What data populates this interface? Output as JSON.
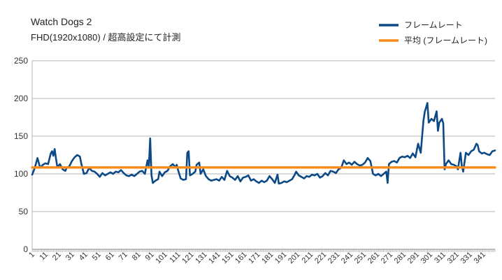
{
  "chart_data": {
    "type": "line",
    "title": "Watch Dogs 2",
    "subtitle": "FHD(1920x1080) / 超高設定にて計測",
    "xlabel": "",
    "ylabel": "",
    "ylim": [
      0,
      250
    ],
    "yticks": [
      "0",
      "50",
      "100",
      "150",
      "200",
      "250"
    ],
    "xlim": [
      1,
      350
    ],
    "xticks": [
      1,
      11,
      21,
      31,
      41,
      51,
      61,
      71,
      81,
      91,
      101,
      111,
      121,
      131,
      141,
      151,
      161,
      171,
      181,
      191,
      201,
      211,
      221,
      231,
      241,
      251,
      261,
      271,
      281,
      291,
      301,
      311,
      321,
      331,
      341
    ],
    "grid": "horizontal",
    "legend_position": "top-right",
    "series": [
      {
        "name": "フレームレート",
        "color": "#0b4a86",
        "points": [
          [
            1,
            99
          ],
          [
            3,
            108
          ],
          [
            5,
            121
          ],
          [
            7,
            108
          ],
          [
            9,
            112
          ],
          [
            11,
            114
          ],
          [
            13,
            113
          ],
          [
            15,
            127
          ],
          [
            16,
            130
          ],
          [
            17,
            124
          ],
          [
            18,
            133
          ],
          [
            19,
            120
          ],
          [
            20,
            109
          ],
          [
            22,
            113
          ],
          [
            24,
            106
          ],
          [
            26,
            104
          ],
          [
            27,
            108
          ],
          [
            29,
            110
          ],
          [
            31,
            117
          ],
          [
            33,
            122
          ],
          [
            35,
            125
          ],
          [
            37,
            123
          ],
          [
            38,
            114
          ],
          [
            40,
            100
          ],
          [
            42,
            101
          ],
          [
            44,
            108
          ],
          [
            46,
            104
          ],
          [
            48,
            103
          ],
          [
            50,
            100
          ],
          [
            52,
            96
          ],
          [
            54,
            101
          ],
          [
            56,
            98
          ],
          [
            58,
            100
          ],
          [
            60,
            102
          ],
          [
            62,
            100
          ],
          [
            64,
            103
          ],
          [
            66,
            102
          ],
          [
            68,
            105
          ],
          [
            70,
            101
          ],
          [
            72,
            98
          ],
          [
            74,
            97
          ],
          [
            76,
            99
          ],
          [
            78,
            97
          ],
          [
            80,
            100
          ],
          [
            82,
            103
          ],
          [
            84,
            104
          ],
          [
            86,
            100
          ],
          [
            88,
            118
          ],
          [
            89,
            110
          ],
          [
            90,
            147
          ],
          [
            91,
            98
          ],
          [
            92,
            88
          ],
          [
            94,
            91
          ],
          [
            96,
            93
          ],
          [
            97,
            103
          ],
          [
            99,
            97
          ],
          [
            101,
            102
          ],
          [
            103,
            104
          ],
          [
            105,
            110
          ],
          [
            107,
            113
          ],
          [
            109,
            109
          ],
          [
            110,
            112
          ],
          [
            111,
            105
          ],
          [
            113,
            94
          ],
          [
            115,
            92
          ],
          [
            117,
            93
          ],
          [
            118,
            128
          ],
          [
            119,
            130
          ],
          [
            120,
            98
          ],
          [
            122,
            100
          ],
          [
            124,
            103
          ],
          [
            125,
            112
          ],
          [
            127,
            115
          ],
          [
            128,
            100
          ],
          [
            130,
            106
          ],
          [
            132,
            97
          ],
          [
            134,
            93
          ],
          [
            136,
            91
          ],
          [
            138,
            92
          ],
          [
            140,
            93
          ],
          [
            142,
            91
          ],
          [
            144,
            96
          ],
          [
            146,
            92
          ],
          [
            148,
            104
          ],
          [
            150,
            97
          ],
          [
            152,
            95
          ],
          [
            154,
            92
          ],
          [
            156,
            97
          ],
          [
            158,
            90
          ],
          [
            160,
            95
          ],
          [
            162,
            96
          ],
          [
            164,
            98
          ],
          [
            166,
            91
          ],
          [
            168,
            93
          ],
          [
            170,
            90
          ],
          [
            172,
            88
          ],
          [
            174,
            91
          ],
          [
            176,
            89
          ],
          [
            178,
            91
          ],
          [
            180,
            97
          ],
          [
            182,
            93
          ],
          [
            184,
            88
          ],
          [
            186,
            99
          ],
          [
            187,
            87
          ],
          [
            189,
            88
          ],
          [
            191,
            90
          ],
          [
            193,
            89
          ],
          [
            195,
            91
          ],
          [
            197,
            93
          ],
          [
            199,
            99
          ],
          [
            200,
            103
          ],
          [
            202,
            98
          ],
          [
            204,
            96
          ],
          [
            206,
            94
          ],
          [
            208,
            97
          ],
          [
            210,
            96
          ],
          [
            212,
            99
          ],
          [
            214,
            98
          ],
          [
            216,
            100
          ],
          [
            218,
            95
          ],
          [
            220,
            97
          ],
          [
            222,
            101
          ],
          [
            224,
            98
          ],
          [
            226,
            104
          ],
          [
            228,
            103
          ],
          [
            230,
            101
          ],
          [
            232,
            106
          ],
          [
            234,
            108
          ],
          [
            236,
            118
          ],
          [
            238,
            113
          ],
          [
            240,
            115
          ],
          [
            242,
            112
          ],
          [
            244,
            116
          ],
          [
            246,
            113
          ],
          [
            248,
            111
          ],
          [
            250,
            112
          ],
          [
            252,
            115
          ],
          [
            254,
            121
          ],
          [
            256,
            117
          ],
          [
            258,
            100
          ],
          [
            260,
            98
          ],
          [
            262,
            100
          ],
          [
            264,
            97
          ],
          [
            266,
            100
          ],
          [
            268,
            103
          ],
          [
            269,
            88
          ],
          [
            270,
            113
          ],
          [
            272,
            116
          ],
          [
            274,
            117
          ],
          [
            276,
            115
          ],
          [
            278,
            121
          ],
          [
            280,
            123
          ],
          [
            282,
            122
          ],
          [
            284,
            124
          ],
          [
            286,
            121
          ],
          [
            288,
            127
          ],
          [
            290,
            122
          ],
          [
            292,
            140
          ],
          [
            294,
            128
          ],
          [
            296,
            170
          ],
          [
            297,
            182
          ],
          [
            299,
            194
          ],
          [
            300,
            168
          ],
          [
            302,
            173
          ],
          [
            304,
            170
          ],
          [
            306,
            183
          ],
          [
            307,
            157
          ],
          [
            308,
            168
          ],
          [
            310,
            173
          ],
          [
            311,
            167
          ],
          [
            312,
            106
          ],
          [
            313,
            113
          ],
          [
            315,
            118
          ],
          [
            317,
            113
          ],
          [
            319,
            112
          ],
          [
            321,
            110
          ],
          [
            322,
            106
          ],
          [
            324,
            128
          ],
          [
            325,
            110
          ],
          [
            326,
            103
          ],
          [
            328,
            128
          ],
          [
            330,
            125
          ],
          [
            332,
            130
          ],
          [
            334,
            132
          ],
          [
            336,
            140
          ],
          [
            337,
            138
          ],
          [
            338,
            130
          ],
          [
            340,
            127
          ],
          [
            342,
            128
          ],
          [
            344,
            126
          ],
          [
            346,
            125
          ],
          [
            348,
            130
          ],
          [
            350,
            131
          ]
        ]
      },
      {
        "name": "平均 (フレームレート)",
        "color": "#f98a18",
        "points": [
          [
            1,
            108.5
          ],
          [
            350,
            108.5
          ]
        ]
      }
    ]
  }
}
